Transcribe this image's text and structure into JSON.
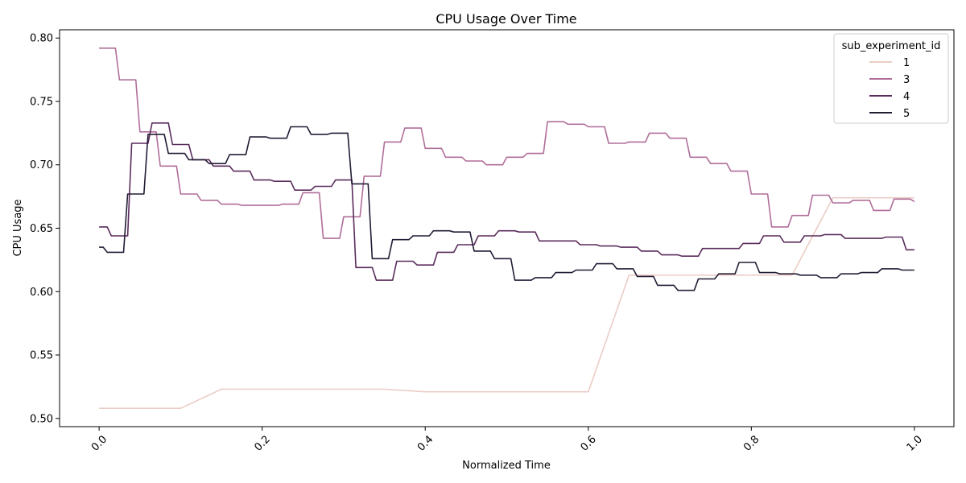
{
  "chart_data": {
    "type": "line",
    "title": "CPU Usage Over Time",
    "xlabel": "Normalized Time",
    "ylabel": "CPU Usage",
    "xlim": [
      -0.0485,
      1.0485
    ],
    "ylim": [
      0.4935,
      0.8065
    ],
    "xticks": [
      0.0,
      0.2,
      0.4,
      0.6,
      0.8,
      1.0
    ],
    "xtick_labels": [
      "0.0",
      "0.2",
      "0.4",
      "0.6",
      "0.8",
      "1.0"
    ],
    "yticks": [
      0.5,
      0.55,
      0.6,
      0.65,
      0.7,
      0.75,
      0.8
    ],
    "ytick_labels": [
      "0.50",
      "0.55",
      "0.60",
      "0.65",
      "0.70",
      "0.75",
      "0.80"
    ],
    "grid": false,
    "legend": {
      "title": "sub_experiment_id",
      "placement": "top-right"
    },
    "series": [
      {
        "name": "1",
        "color": "#ebcdc6",
        "points": [
          [
            0.0,
            0.508
          ],
          [
            0.1,
            0.508
          ],
          [
            0.15,
            0.523
          ],
          [
            0.35,
            0.523
          ],
          [
            0.4,
            0.521
          ],
          [
            0.6,
            0.521
          ],
          [
            0.65,
            0.613
          ],
          [
            0.85,
            0.613
          ],
          [
            0.9,
            0.674
          ],
          [
            1.0,
            0.674
          ]
        ]
      },
      {
        "name": "3",
        "color": "#b06e99",
        "points": [
          [
            0.0,
            0.792
          ],
          [
            0.02,
            0.792
          ],
          [
            0.025,
            0.767
          ],
          [
            0.045,
            0.767
          ],
          [
            0.05,
            0.726
          ],
          [
            0.07,
            0.726
          ],
          [
            0.075,
            0.699
          ],
          [
            0.095,
            0.699
          ],
          [
            0.1,
            0.677
          ],
          [
            0.12,
            0.677
          ],
          [
            0.125,
            0.672
          ],
          [
            0.145,
            0.672
          ],
          [
            0.15,
            0.669
          ],
          [
            0.17,
            0.669
          ],
          [
            0.175,
            0.668
          ],
          [
            0.22,
            0.668
          ],
          [
            0.225,
            0.669
          ],
          [
            0.245,
            0.669
          ],
          [
            0.25,
            0.678
          ],
          [
            0.27,
            0.678
          ],
          [
            0.275,
            0.642
          ],
          [
            0.295,
            0.642
          ],
          [
            0.3,
            0.659
          ],
          [
            0.32,
            0.659
          ],
          [
            0.325,
            0.691
          ],
          [
            0.345,
            0.691
          ],
          [
            0.35,
            0.718
          ],
          [
            0.37,
            0.718
          ],
          [
            0.375,
            0.729
          ],
          [
            0.395,
            0.729
          ],
          [
            0.4,
            0.713
          ],
          [
            0.42,
            0.713
          ],
          [
            0.425,
            0.706
          ],
          [
            0.445,
            0.706
          ],
          [
            0.45,
            0.703
          ],
          [
            0.47,
            0.703
          ],
          [
            0.475,
            0.7
          ],
          [
            0.495,
            0.7
          ],
          [
            0.5,
            0.706
          ],
          [
            0.52,
            0.706
          ],
          [
            0.525,
            0.709
          ],
          [
            0.545,
            0.709
          ],
          [
            0.55,
            0.734
          ],
          [
            0.57,
            0.734
          ],
          [
            0.575,
            0.732
          ],
          [
            0.595,
            0.732
          ],
          [
            0.6,
            0.73
          ],
          [
            0.62,
            0.73
          ],
          [
            0.625,
            0.717
          ],
          [
            0.645,
            0.717
          ],
          [
            0.65,
            0.718
          ],
          [
            0.67,
            0.718
          ],
          [
            0.675,
            0.725
          ],
          [
            0.695,
            0.725
          ],
          [
            0.7,
            0.721
          ],
          [
            0.72,
            0.721
          ],
          [
            0.725,
            0.706
          ],
          [
            0.745,
            0.706
          ],
          [
            0.75,
            0.701
          ],
          [
            0.77,
            0.701
          ],
          [
            0.775,
            0.695
          ],
          [
            0.795,
            0.695
          ],
          [
            0.8,
            0.677
          ],
          [
            0.82,
            0.677
          ],
          [
            0.825,
            0.651
          ],
          [
            0.845,
            0.651
          ],
          [
            0.85,
            0.66
          ],
          [
            0.87,
            0.66
          ],
          [
            0.875,
            0.676
          ],
          [
            0.895,
            0.676
          ],
          [
            0.9,
            0.67
          ],
          [
            0.92,
            0.67
          ],
          [
            0.925,
            0.672
          ],
          [
            0.945,
            0.672
          ],
          [
            0.95,
            0.664
          ],
          [
            0.97,
            0.664
          ],
          [
            0.975,
            0.673
          ],
          [
            0.995,
            0.673
          ],
          [
            1.0,
            0.671
          ]
        ]
      },
      {
        "name": "4",
        "color": "#5a2c5b",
        "points": [
          [
            0.0,
            0.651
          ],
          [
            0.01,
            0.651
          ],
          [
            0.015,
            0.644
          ],
          [
            0.035,
            0.644
          ],
          [
            0.04,
            0.717
          ],
          [
            0.06,
            0.717
          ],
          [
            0.065,
            0.733
          ],
          [
            0.085,
            0.733
          ],
          [
            0.09,
            0.716
          ],
          [
            0.11,
            0.716
          ],
          [
            0.115,
            0.704
          ],
          [
            0.135,
            0.704
          ],
          [
            0.14,
            0.699
          ],
          [
            0.16,
            0.699
          ],
          [
            0.165,
            0.695
          ],
          [
            0.185,
            0.695
          ],
          [
            0.19,
            0.688
          ],
          [
            0.21,
            0.688
          ],
          [
            0.215,
            0.687
          ],
          [
            0.235,
            0.687
          ],
          [
            0.24,
            0.68
          ],
          [
            0.26,
            0.68
          ],
          [
            0.265,
            0.683
          ],
          [
            0.285,
            0.683
          ],
          [
            0.29,
            0.688
          ],
          [
            0.31,
            0.688
          ],
          [
            0.315,
            0.619
          ],
          [
            0.335,
            0.619
          ],
          [
            0.34,
            0.609
          ],
          [
            0.36,
            0.609
          ],
          [
            0.365,
            0.624
          ],
          [
            0.385,
            0.624
          ],
          [
            0.39,
            0.621
          ],
          [
            0.41,
            0.621
          ],
          [
            0.415,
            0.631
          ],
          [
            0.435,
            0.631
          ],
          [
            0.44,
            0.637
          ],
          [
            0.46,
            0.637
          ],
          [
            0.465,
            0.644
          ],
          [
            0.485,
            0.644
          ],
          [
            0.49,
            0.648
          ],
          [
            0.51,
            0.648
          ],
          [
            0.515,
            0.647
          ],
          [
            0.535,
            0.647
          ],
          [
            0.54,
            0.64
          ],
          [
            0.585,
            0.64
          ],
          [
            0.59,
            0.637
          ],
          [
            0.61,
            0.637
          ],
          [
            0.615,
            0.636
          ],
          [
            0.635,
            0.636
          ],
          [
            0.64,
            0.635
          ],
          [
            0.66,
            0.635
          ],
          [
            0.665,
            0.632
          ],
          [
            0.685,
            0.632
          ],
          [
            0.69,
            0.629
          ],
          [
            0.71,
            0.629
          ],
          [
            0.715,
            0.628
          ],
          [
            0.735,
            0.628
          ],
          [
            0.74,
            0.634
          ],
          [
            0.76,
            0.634
          ],
          [
            0.765,
            0.634
          ],
          [
            0.785,
            0.634
          ],
          [
            0.79,
            0.638
          ],
          [
            0.81,
            0.638
          ],
          [
            0.815,
            0.644
          ],
          [
            0.835,
            0.644
          ],
          [
            0.84,
            0.639
          ],
          [
            0.86,
            0.639
          ],
          [
            0.865,
            0.644
          ],
          [
            0.885,
            0.644
          ],
          [
            0.89,
            0.645
          ],
          [
            0.91,
            0.645
          ],
          [
            0.915,
            0.642
          ],
          [
            0.935,
            0.642
          ],
          [
            0.94,
            0.642
          ],
          [
            0.96,
            0.642
          ],
          [
            0.965,
            0.643
          ],
          [
            0.985,
            0.643
          ],
          [
            0.99,
            0.633
          ],
          [
            1.0,
            0.633
          ]
        ]
      },
      {
        "name": "5",
        "color": "#241b35",
        "points": [
          [
            0.0,
            0.635
          ],
          [
            0.005,
            0.635
          ],
          [
            0.01,
            0.631
          ],
          [
            0.03,
            0.631
          ],
          [
            0.035,
            0.677
          ],
          [
            0.055,
            0.677
          ],
          [
            0.06,
            0.724
          ],
          [
            0.08,
            0.724
          ],
          [
            0.085,
            0.709
          ],
          [
            0.105,
            0.709
          ],
          [
            0.11,
            0.704
          ],
          [
            0.13,
            0.704
          ],
          [
            0.135,
            0.701
          ],
          [
            0.155,
            0.701
          ],
          [
            0.16,
            0.708
          ],
          [
            0.18,
            0.708
          ],
          [
            0.185,
            0.722
          ],
          [
            0.205,
            0.722
          ],
          [
            0.21,
            0.721
          ],
          [
            0.23,
            0.721
          ],
          [
            0.235,
            0.73
          ],
          [
            0.255,
            0.73
          ],
          [
            0.26,
            0.724
          ],
          [
            0.28,
            0.724
          ],
          [
            0.285,
            0.725
          ],
          [
            0.305,
            0.725
          ],
          [
            0.31,
            0.685
          ],
          [
            0.33,
            0.685
          ],
          [
            0.335,
            0.626
          ],
          [
            0.355,
            0.626
          ],
          [
            0.36,
            0.641
          ],
          [
            0.38,
            0.641
          ],
          [
            0.385,
            0.644
          ],
          [
            0.405,
            0.644
          ],
          [
            0.41,
            0.648
          ],
          [
            0.43,
            0.648
          ],
          [
            0.435,
            0.647
          ],
          [
            0.455,
            0.647
          ],
          [
            0.46,
            0.632
          ],
          [
            0.48,
            0.632
          ],
          [
            0.485,
            0.626
          ],
          [
            0.505,
            0.626
          ],
          [
            0.51,
            0.609
          ],
          [
            0.53,
            0.609
          ],
          [
            0.535,
            0.611
          ],
          [
            0.555,
            0.611
          ],
          [
            0.56,
            0.615
          ],
          [
            0.58,
            0.615
          ],
          [
            0.585,
            0.617
          ],
          [
            0.605,
            0.617
          ],
          [
            0.61,
            0.622
          ],
          [
            0.63,
            0.622
          ],
          [
            0.635,
            0.618
          ],
          [
            0.655,
            0.618
          ],
          [
            0.66,
            0.612
          ],
          [
            0.68,
            0.612
          ],
          [
            0.685,
            0.605
          ],
          [
            0.705,
            0.605
          ],
          [
            0.71,
            0.601
          ],
          [
            0.73,
            0.601
          ],
          [
            0.735,
            0.61
          ],
          [
            0.755,
            0.61
          ],
          [
            0.76,
            0.614
          ],
          [
            0.78,
            0.614
          ],
          [
            0.785,
            0.623
          ],
          [
            0.805,
            0.623
          ],
          [
            0.81,
            0.615
          ],
          [
            0.83,
            0.615
          ],
          [
            0.835,
            0.614
          ],
          [
            0.855,
            0.614
          ],
          [
            0.86,
            0.613
          ],
          [
            0.88,
            0.613
          ],
          [
            0.885,
            0.611
          ],
          [
            0.905,
            0.611
          ],
          [
            0.91,
            0.614
          ],
          [
            0.93,
            0.614
          ],
          [
            0.935,
            0.615
          ],
          [
            0.955,
            0.615
          ],
          [
            0.96,
            0.618
          ],
          [
            0.98,
            0.618
          ],
          [
            0.985,
            0.617
          ],
          [
            1.0,
            0.617
          ]
        ]
      }
    ]
  }
}
